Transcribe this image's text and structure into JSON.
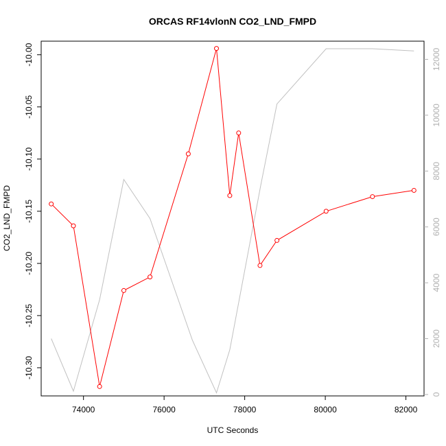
{
  "chart_data": {
    "type": "line",
    "title": "ORCAS RF14vlonN CO2_LND_FMPD",
    "xlabel": "UTC Seconds",
    "ylabel": "CO2_LND_FMPD",
    "xlim": [
      72950,
      82450
    ],
    "ylim": [
      -10.327,
      -9.987
    ],
    "y2lim": [
      -50,
      12650
    ],
    "x_ticks": [
      74000,
      76000,
      78000,
      80000,
      82000
    ],
    "y_ticks": [
      -10.0,
      -10.05,
      -10.1,
      -10.15,
      -10.2,
      -10.25,
      -10.3
    ],
    "y2_ticks": [
      0,
      2000,
      4000,
      6000,
      8000,
      10000,
      12000
    ],
    "series": [
      {
        "color": "#ff0000",
        "axis": "left",
        "marker": "circle",
        "x": [
          73200,
          73750,
          74400,
          75000,
          75650,
          76600,
          77300,
          77630,
          77850,
          78380,
          78800,
          80020,
          81170,
          82200
        ],
        "y": [
          -10.143,
          -10.164,
          -10.318,
          -10.226,
          -10.213,
          -10.095,
          -9.994,
          -10.135,
          -10.075,
          -10.202,
          -10.178,
          -10.15,
          -10.136,
          -10.13
        ]
      },
      {
        "color": "#c0c0c0",
        "axis": "right",
        "marker": "none",
        "x": [
          73200,
          73750,
          74400,
          75000,
          75650,
          76700,
          77300,
          77630,
          78400,
          78800,
          80020,
          81170,
          82200
        ],
        "y": [
          2000,
          120,
          3400,
          7700,
          6300,
          1950,
          60,
          1600,
          7500,
          10400,
          12380,
          12380,
          12300
        ]
      }
    ]
  }
}
